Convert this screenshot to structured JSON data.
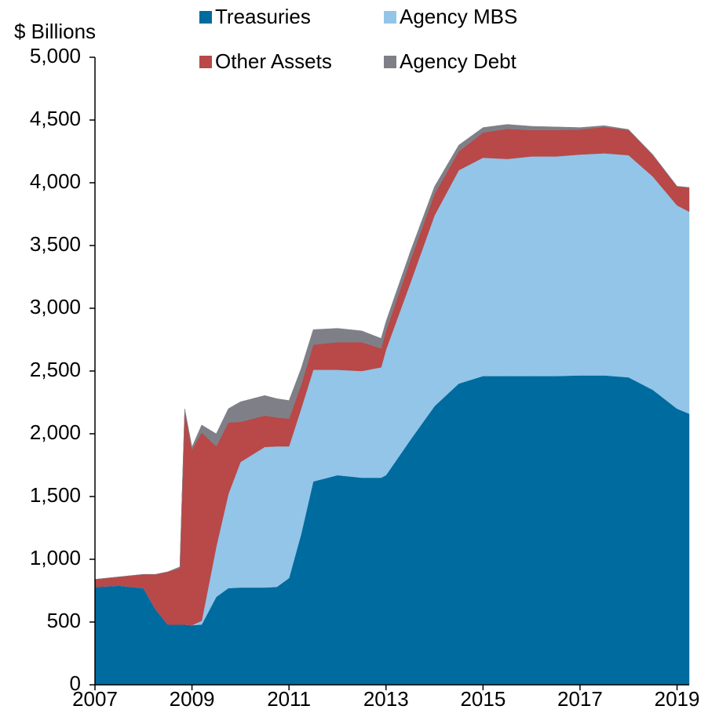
{
  "chart_data": {
    "type": "stacked_area",
    "ylabel": "$ Billions",
    "x": [
      2007.0,
      2007.5,
      2008.0,
      2008.25,
      2008.5,
      2008.75,
      2008.85,
      2009.0,
      2009.2,
      2009.5,
      2009.75,
      2010.0,
      2010.5,
      2010.75,
      2011.0,
      2011.25,
      2011.5,
      2012.0,
      2012.5,
      2012.9,
      2013.0,
      2013.5,
      2014.0,
      2014.5,
      2015.0,
      2015.5,
      2016.0,
      2016.5,
      2017.0,
      2017.5,
      2018.0,
      2018.5,
      2019.0,
      2019.25
    ],
    "series": [
      {
        "name": "Treasuries",
        "color": "#006b9f",
        "values": [
          780,
          790,
          770,
          600,
          480,
          480,
          480,
          475,
          480,
          700,
          770,
          775,
          775,
          780,
          850,
          1200,
          1620,
          1670,
          1650,
          1650,
          1670,
          1950,
          2220,
          2400,
          2460,
          2460,
          2460,
          2460,
          2465,
          2465,
          2450,
          2350,
          2200,
          2160
        ]
      },
      {
        "name": "Agency MBS",
        "color": "#92c5e8",
        "values": [
          0,
          0,
          0,
          0,
          0,
          0,
          0,
          0,
          30,
          400,
          750,
          1000,
          1120,
          1120,
          1050,
          1000,
          890,
          840,
          850,
          880,
          1000,
          1250,
          1520,
          1700,
          1740,
          1730,
          1750,
          1750,
          1760,
          1770,
          1770,
          1700,
          1620,
          1610
        ]
      },
      {
        "name": "Other Assets",
        "color": "#b94848",
        "values": [
          60,
          70,
          110,
          280,
          420,
          450,
          1700,
          1400,
          1500,
          800,
          570,
          320,
          250,
          230,
          220,
          190,
          200,
          220,
          230,
          150,
          150,
          180,
          170,
          150,
          200,
          240,
          210,
          210,
          200,
          210,
          200,
          170,
          150,
          190
        ]
      },
      {
        "name": "Agency Debt",
        "color": "#7f8087",
        "values": [
          0,
          0,
          0,
          0,
          0,
          10,
          20,
          20,
          60,
          100,
          110,
          160,
          160,
          150,
          145,
          130,
          120,
          110,
          90,
          80,
          75,
          70,
          60,
          50,
          40,
          35,
          30,
          25,
          15,
          10,
          5,
          5,
          3,
          3
        ]
      }
    ],
    "xlim": [
      2007,
      2019.25
    ],
    "xticks": [
      2007,
      2009,
      2011,
      2013,
      2015,
      2017,
      2019
    ],
    "ylim": [
      0,
      5000
    ],
    "yticks": [
      0,
      500,
      {
        "value": 1000,
        "label": "1,000"
      },
      {
        "value": 1500,
        "label": "1,500"
      },
      {
        "value": 2000,
        "label": "2,000"
      },
      {
        "value": 2500,
        "label": "2,500"
      },
      {
        "value": 3000,
        "label": "3,000"
      },
      {
        "value": 3500,
        "label": "3,500"
      },
      {
        "value": 4000,
        "label": "4,000"
      },
      {
        "value": 4500,
        "label": "4,500"
      },
      {
        "value": 5000,
        "label": "5,000"
      }
    ]
  }
}
